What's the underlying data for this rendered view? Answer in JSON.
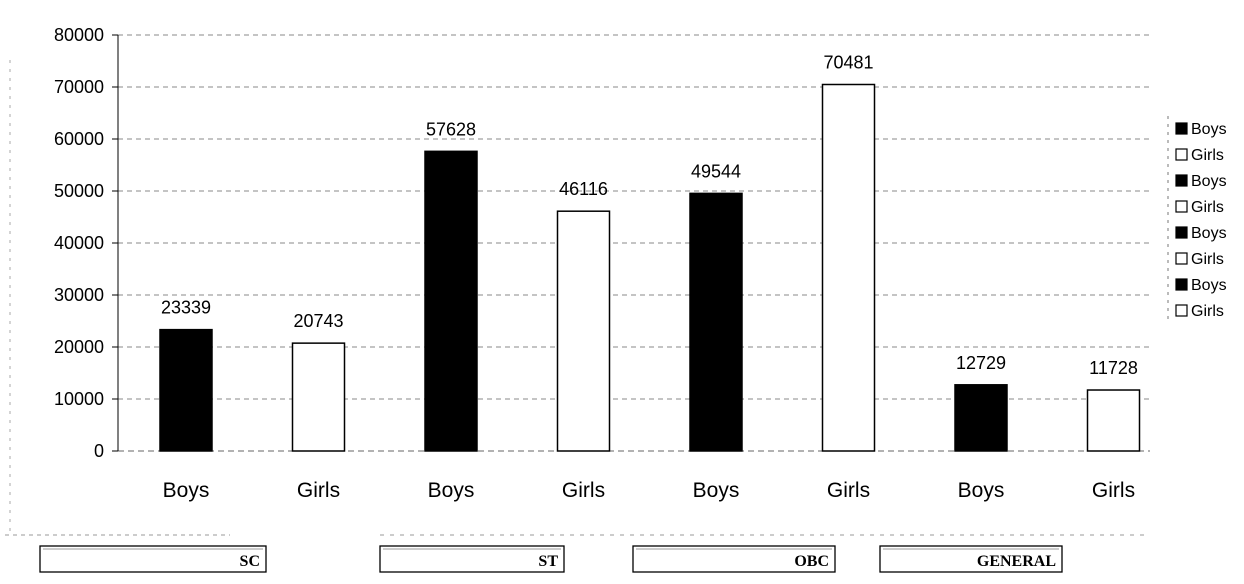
{
  "chart_data": {
    "type": "bar",
    "categories": [
      "Boys",
      "Girls",
      "Boys",
      "Girls",
      "Boys",
      "Girls",
      "Boys",
      "Girls"
    ],
    "groups": [
      "SC",
      "ST",
      "OBC",
      "GENERAL"
    ],
    "values": [
      23339,
      20743,
      57628,
      46116,
      49544,
      70481,
      12729,
      11728
    ],
    "data_labels": [
      "23339",
      "20743",
      "57628",
      "46116",
      "49544",
      "70481",
      "12729",
      "11728"
    ],
    "y_ticks": [
      "0",
      "10000",
      "20000",
      "30000",
      "40000",
      "50000",
      "60000",
      "70000",
      "80000"
    ],
    "ylim": [
      0,
      80000
    ],
    "legend": {
      "placement": "right",
      "entries": [
        "Boys",
        "Girls",
        "Boys",
        "Girls",
        "Boys",
        "Girls",
        "Boys",
        "Girls"
      ]
    },
    "colors": {
      "boys": "#000000",
      "girls": "#ffffff",
      "outline": "#000000"
    },
    "grid": true
  }
}
